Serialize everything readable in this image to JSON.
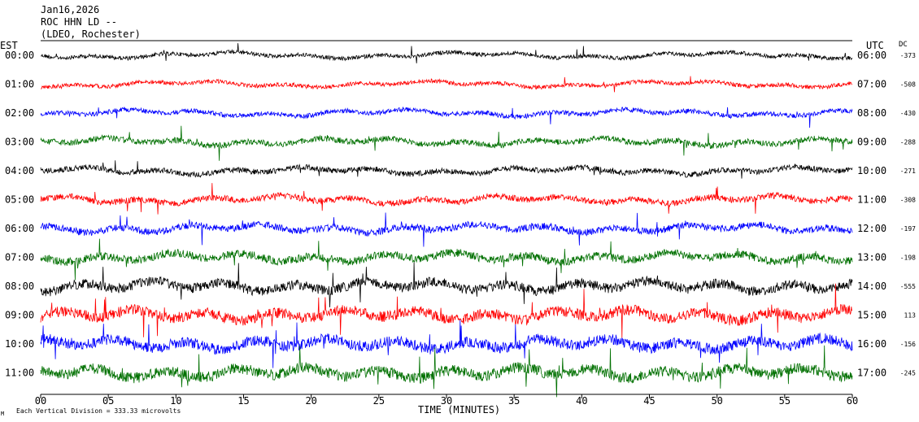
{
  "header": {
    "line1": "Jan16,2026",
    "line2": "ROC HHN LD --",
    "line3": "(LDEO, Rochester)"
  },
  "left_tz": "EST",
  "right_tz": "UTC",
  "dc_header": "DC",
  "footer": {
    "xlabel": "TIME (MINUTES)",
    "scale_note": "Each Vertical Division =  333.33 microvolts",
    "corner_mark": "M"
  },
  "colors": {
    "cycle": [
      "#000000",
      "#ff0000",
      "#0000ff",
      "#007000"
    ]
  },
  "chart_data": {
    "type": "line",
    "xlim": [
      0,
      60
    ],
    "x_ticks": [
      "00",
      "05",
      "10",
      "15",
      "20",
      "25",
      "30",
      "35",
      "40",
      "45",
      "50",
      "55",
      "60"
    ],
    "rows": [
      {
        "est": "00:00",
        "utc": "06:00",
        "dc": "-373",
        "activity": 0.55
      },
      {
        "est": "01:00",
        "utc": "07:00",
        "dc": "-508",
        "activity": 0.55
      },
      {
        "est": "02:00",
        "utc": "08:00",
        "dc": "-430",
        "activity": 0.65
      },
      {
        "est": "03:00",
        "utc": "09:00",
        "dc": "-288",
        "activity": 0.8
      },
      {
        "est": "04:00",
        "utc": "10:00",
        "dc": "-271",
        "activity": 0.75
      },
      {
        "est": "05:00",
        "utc": "11:00",
        "dc": "-308",
        "activity": 0.85
      },
      {
        "est": "06:00",
        "utc": "12:00",
        "dc": "-197",
        "activity": 0.95
      },
      {
        "est": "07:00",
        "utc": "13:00",
        "dc": "-198",
        "activity": 1.1
      },
      {
        "est": "08:00",
        "utc": "14:00",
        "dc": "-555",
        "activity": 1.35
      },
      {
        "est": "09:00",
        "utc": "15:00",
        "dc": "113",
        "activity": 1.45
      },
      {
        "est": "10:00",
        "utc": "16:00",
        "dc": "-156",
        "activity": 1.45
      },
      {
        "est": "11:00",
        "utc": "17:00",
        "dc": "-245",
        "activity": 1.5
      }
    ]
  }
}
